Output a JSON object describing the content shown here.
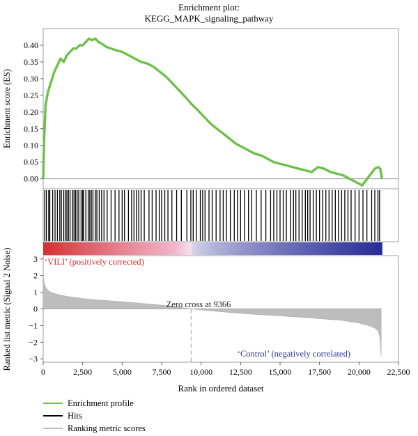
{
  "chart_data": {
    "type": "line",
    "title_line1": "Enrichment plot:",
    "title_line2": "KEGG_MAPK_signaling_pathway",
    "xlabel": "Rank in ordered dataset",
    "xlim": [
      0,
      22500
    ],
    "x_ticks": [
      0,
      2500,
      5000,
      7500,
      10000,
      12500,
      15000,
      17500,
      20000,
      22500
    ],
    "x_tick_labels": [
      "0",
      "2,500",
      "5,000",
      "7,500",
      "10,000",
      "12,500",
      "15,000",
      "17,500",
      "20,000",
      "22,500"
    ],
    "es_panel": {
      "ylabel": "Enrichment score (ES)",
      "ylim": [
        -0.03,
        0.45
      ],
      "y_ticks": [
        0.0,
        0.05,
        0.1,
        0.15,
        0.2,
        0.25,
        0.3,
        0.35,
        0.4
      ],
      "y_tick_labels": [
        "0.00",
        "0.05",
        "0.10",
        "0.15",
        "0.20",
        "0.25",
        "0.30",
        "0.35",
        "0.40"
      ],
      "series": [
        {
          "color": "#6cc04a",
          "x": [
            0,
            60,
            150,
            300,
            500,
            700,
            900,
            1100,
            1300,
            1500,
            1700,
            1900,
            2100,
            2300,
            2500,
            2700,
            2900,
            3100,
            3300,
            3500,
            3700,
            4000,
            4300,
            4600,
            5000,
            5400,
            5800,
            6200,
            6600,
            7000,
            7400,
            7800,
            8200,
            8600,
            9000,
            9366,
            9800,
            10200,
            10600,
            11000,
            11400,
            11800,
            12200,
            12600,
            13000,
            13400,
            13800,
            14200,
            14600,
            15000,
            15400,
            15800,
            16200,
            16600,
            17000,
            17400,
            17800,
            18200,
            18600,
            19000,
            19400,
            19800,
            20200,
            20600,
            21000,
            21200,
            21350,
            21450
          ],
          "y": [
            0.0,
            0.12,
            0.22,
            0.26,
            0.29,
            0.32,
            0.34,
            0.36,
            0.35,
            0.37,
            0.38,
            0.39,
            0.39,
            0.4,
            0.4,
            0.41,
            0.42,
            0.415,
            0.42,
            0.41,
            0.405,
            0.395,
            0.39,
            0.385,
            0.38,
            0.37,
            0.36,
            0.35,
            0.345,
            0.335,
            0.32,
            0.305,
            0.285,
            0.265,
            0.245,
            0.225,
            0.205,
            0.185,
            0.165,
            0.15,
            0.135,
            0.12,
            0.105,
            0.095,
            0.085,
            0.075,
            0.07,
            0.06,
            0.05,
            0.045,
            0.04,
            0.035,
            0.03,
            0.025,
            0.02,
            0.035,
            0.03,
            0.02,
            0.015,
            0.01,
            0.0,
            -0.01,
            -0.02,
            0.005,
            0.03,
            0.035,
            0.03,
            0.0
          ],
          "hits_x": [
            100,
            200,
            350,
            420,
            600,
            750,
            900,
            1050,
            1150,
            1300,
            1400,
            1500,
            1600,
            1700,
            1850,
            1950,
            2050,
            2150,
            2250,
            2400,
            2500,
            2550,
            2700,
            2850,
            2950,
            3050,
            3150,
            3300,
            3400,
            3550,
            3700,
            3850,
            4050,
            4300,
            4550,
            4800,
            5000,
            5150,
            5400,
            5600,
            5750,
            5900,
            6050,
            6200,
            6400,
            6700,
            6900,
            7150,
            7350,
            7500,
            7700,
            7900,
            8150,
            8450,
            8750,
            9100,
            9350,
            9500,
            9700,
            9950,
            10100,
            10250,
            10500,
            10700,
            10950,
            11200,
            11400,
            11600,
            11850,
            12100,
            12300,
            12500,
            12750,
            13000,
            13200,
            13500,
            13800,
            14100,
            14400,
            14600,
            14800,
            15000,
            15200,
            15400,
            15650,
            15850,
            16000,
            16200,
            16400,
            16600,
            16750,
            16900,
            17100,
            17300,
            17500,
            17700,
            17900,
            18100,
            18300,
            18500,
            18700,
            18900,
            19100,
            19300,
            19500,
            19750,
            20000,
            20250,
            20500,
            20800,
            21000,
            21200,
            21300
          ]
        }
      ]
    },
    "ranked_panel": {
      "ylabel": "Ranked list metric (Signal 2 Noise)",
      "ylim": [
        -3.2,
        3.2
      ],
      "y_ticks": [
        3,
        2,
        1,
        0,
        -1,
        -2,
        -3
      ],
      "y_tick_labels": [
        "3",
        "2",
        "1",
        "0",
        "−1",
        "−2",
        "−3"
      ],
      "pos_label": "‘VILI’ (positively corrected)",
      "neg_label": "‘Control’ (negatively correlated)",
      "zero_cross_label": "Zero cross at 9366",
      "zero_cross": 9366,
      "series_x": [
        0,
        50,
        150,
        300,
        600,
        1000,
        1500,
        2500,
        4000,
        6000,
        8000,
        9366,
        11000,
        13000,
        15000,
        17000,
        19000,
        20000,
        20600,
        21000,
        21200,
        21300,
        21350,
        21400
      ],
      "series_y": [
        2.0,
        1.6,
        1.3,
        1.1,
        0.95,
        0.85,
        0.75,
        0.62,
        0.5,
        0.35,
        0.18,
        0.0,
        -0.15,
        -0.3,
        -0.42,
        -0.55,
        -0.7,
        -0.85,
        -1.0,
        -1.15,
        -1.3,
        -1.6,
        -2.0,
        -2.85
      ]
    },
    "legend": {
      "placement": "bottom-left",
      "entries": [
        {
          "label": "Enrichment profile",
          "color": "#6cc04a"
        },
        {
          "label": "Hits",
          "color": "#000000"
        },
        {
          "label": "Ranking metric scores",
          "color": "#bdbdbd"
        }
      ]
    },
    "colors": {
      "positive": "#d43030",
      "negative": "#2a2f9a",
      "pos_label_color": "#d62b2b",
      "neg_label_color": "#2c3591"
    }
  }
}
